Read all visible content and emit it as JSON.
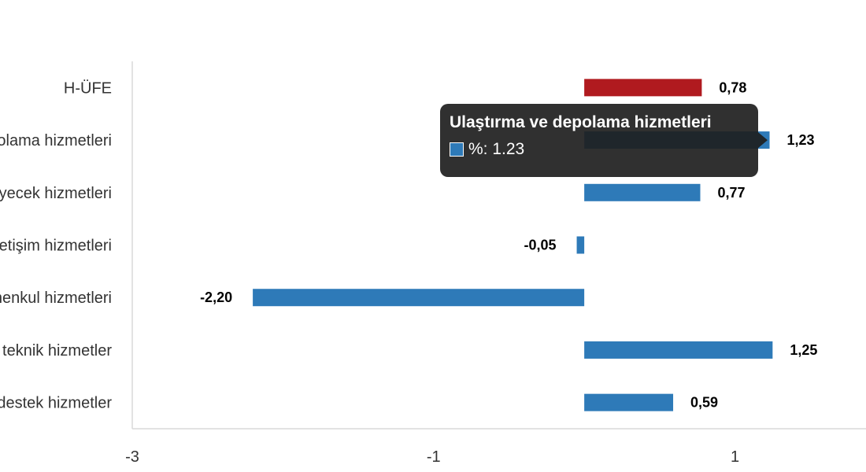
{
  "chart_data": {
    "type": "bar",
    "orientation": "horizontal",
    "categories": [
      "H-ÜFE",
      "Ulaştırma ve depolama hizmetleri",
      "Konaklama ve yiyecek hizmetleri",
      "Bilgi ve iletişim hizmetleri",
      "Gayrimenkul hizmetleri",
      "Mesleki, bilimsel ve teknik hizmetler",
      "İdari ve destek hizmetler"
    ],
    "values": [
      0.78,
      1.23,
      0.77,
      -0.05,
      -2.2,
      1.25,
      0.59
    ],
    "data_labels": [
      "0,78",
      "1,23",
      "0,77",
      "-0,05",
      "-2,20",
      "1,25",
      "0,59"
    ],
    "xlim": [
      -3,
      1.87
    ],
    "xticks": [
      -3,
      -1,
      1
    ],
    "xtick_labels": [
      "-3",
      "-1",
      "1"
    ],
    "grid": false,
    "colors": {
      "highlight": "#b01a1f",
      "default": "#2e7ab8"
    },
    "highlight_index": 0
  },
  "tooltip": {
    "title": "Ulaştırma ve depolama hizmetleri",
    "series_label": "%: 1.23",
    "swatch_color": "#2e7ab8"
  }
}
